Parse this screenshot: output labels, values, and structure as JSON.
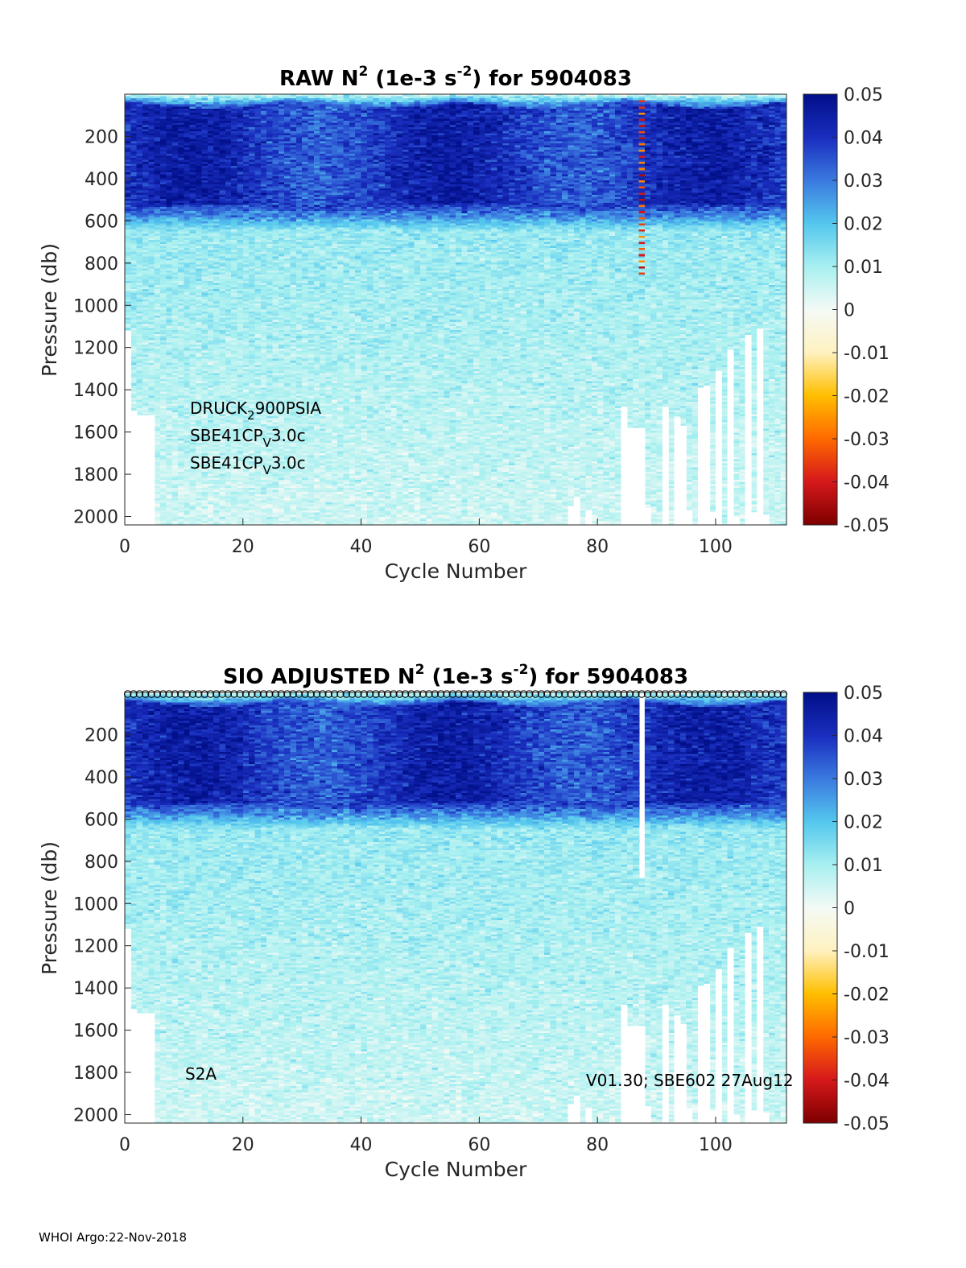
{
  "colormap": {
    "stops": [
      "#7f0000",
      "#d7191c",
      "#ff6a00",
      "#ffbf00",
      "#fff2c0",
      "#f4faf6",
      "#a8f0f0",
      "#55c8ee",
      "#3b7be0",
      "#1a2fc0",
      "#02108a"
    ]
  },
  "footer": "WHOI Argo:22-Nov-2018",
  "chart_data": [
    {
      "type": "heatmap",
      "title": {
        "prefix": "RAW N",
        "sup1": "2",
        "mid": " (1e-3 s",
        "sup2": "-2",
        "suffix": ") for 5904083"
      },
      "xlabel": "Cycle Number",
      "ylabel": "Pressure (db)",
      "xlim": [
        0,
        112
      ],
      "ylim": [
        2040,
        0
      ],
      "xticks": [
        "0",
        "20",
        "40",
        "60",
        "80",
        "100"
      ],
      "yticks": [
        "200",
        "400",
        "600",
        "800",
        "1000",
        "1200",
        "1400",
        "1600",
        "1800",
        "2000"
      ],
      "colorbar": {
        "clim": [
          -0.05,
          0.05
        ],
        "ticks": [
          "0.05",
          "0.04",
          "0.03",
          "0.02",
          "0.01",
          "0",
          "-0.01",
          "-0.02",
          "-0.03",
          "-0.04",
          "-0.05"
        ]
      },
      "annotations": [
        {
          "base": "DRUCK",
          "sub": "2",
          "rest": "900PSIA"
        },
        {
          "base": "SBE41CP",
          "sub": "V",
          "rest": "3.0c"
        },
        {
          "base": "SBE41CP",
          "sub": "V",
          "rest": "3.0c"
        }
      ],
      "profile_max_depth": {
        "0": 1120,
        "1": 1500,
        "2": 1520,
        "3": 1520,
        "4": 1520,
        "75": 1950,
        "76": 1910,
        "78": 1970,
        "84": 1480,
        "85": 1580,
        "86": 1580,
        "87": 1580,
        "88": 1960,
        "91": 1480,
        "93": 1530,
        "94": 1570,
        "95": 1970,
        "97": 1390,
        "98": 1380,
        "99": 1980,
        "100": 1310,
        "102": 1210,
        "103": 2000,
        "105": 1140,
        "106": 1980,
        "107": 1110,
        "108": 1990
      },
      "flagged_cycle": 87
    },
    {
      "type": "heatmap",
      "title": {
        "prefix": "SIO  ADJUSTED N",
        "sup1": "2",
        "mid": " (1e-3 s",
        "sup2": "-2",
        "suffix": ") for 5904083"
      },
      "xlabel": "Cycle Number",
      "ylabel": "Pressure (db)",
      "xlim": [
        0,
        112
      ],
      "ylim": [
        2040,
        0
      ],
      "xticks": [
        "0",
        "20",
        "40",
        "60",
        "80",
        "100"
      ],
      "yticks": [
        "200",
        "400",
        "600",
        "800",
        "1000",
        "1200",
        "1400",
        "1600",
        "1800",
        "2000"
      ],
      "colorbar": {
        "clim": [
          -0.05,
          0.05
        ],
        "ticks": [
          "0.05",
          "0.04",
          "0.03",
          "0.02",
          "0.01",
          "0",
          "-0.01",
          "-0.02",
          "-0.03",
          "-0.04",
          "-0.05"
        ]
      },
      "label_left": "S2A",
      "label_right": "V01.30; SBE602 27Aug12",
      "profile_max_depth": {
        "0": 1120,
        "1": 1500,
        "2": 1520,
        "3": 1520,
        "4": 1520,
        "75": 1950,
        "76": 1910,
        "78": 1970,
        "84": 1480,
        "85": 1580,
        "86": 1580,
        "87": 1580,
        "88": 1960,
        "91": 1480,
        "93": 1530,
        "94": 1570,
        "95": 1970,
        "97": 1390,
        "98": 1380,
        "99": 1980,
        "100": 1310,
        "102": 1210,
        "103": 2000,
        "105": 1140,
        "106": 1980,
        "107": 1110,
        "108": 1990
      },
      "blank_cycle_max_depth": {
        "87": 870
      },
      "surface_markers": "circle at each cycle"
    }
  ]
}
